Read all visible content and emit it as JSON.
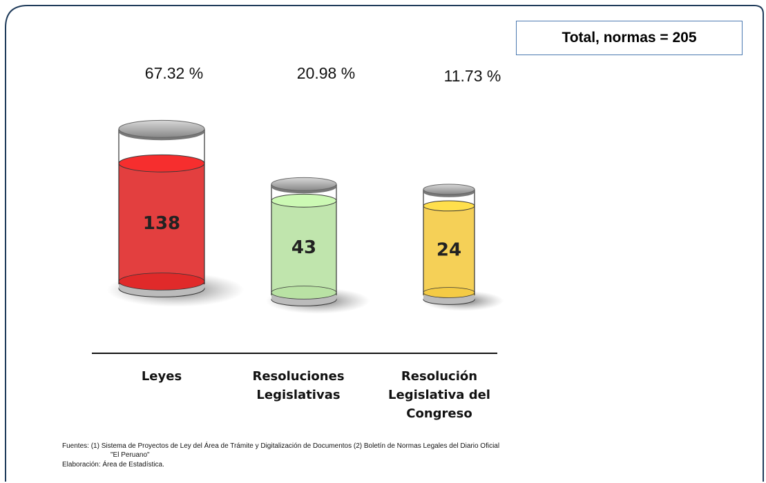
{
  "chart_data": {
    "type": "bar",
    "annotation": "Total, normas = 205",
    "categories": [
      "Leyes",
      "Resoluciones Legislativas",
      "Resolución Legislativa del Congreso"
    ],
    "values": [
      138,
      43,
      24
    ],
    "percentage_labels": [
      "67.32 %",
      "20.98 %",
      "11.73 %"
    ],
    "colors": [
      "#e02a2a",
      "#b9e2a4",
      "#f4cb45"
    ],
    "footnotes": [
      "Fuentes: (1) Sistema de Proyectos de Ley del Área de Trámite y Digitalización de Documentos (2) Boletín de Normas Legales del Diario Oficial",
      "\"El Peruano\"",
      "Elaboración: Área de Estadística."
    ]
  }
}
